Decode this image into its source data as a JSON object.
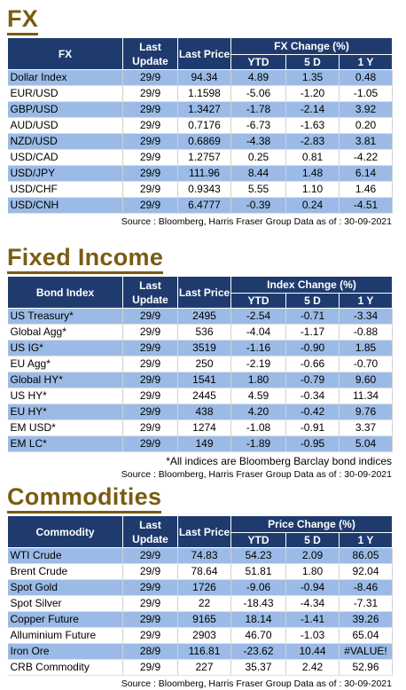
{
  "fx": {
    "title": "FX",
    "headers": {
      "name": "FX",
      "last_update": "Last Update",
      "last_price": "Last Price",
      "change_group": "FX Change (%)",
      "ytd": "YTD",
      "d5": "5 D",
      "y1": "1 Y"
    },
    "rows": [
      {
        "name": "Dollar Index",
        "update": "29/9",
        "price": "94.34",
        "ytd": "4.89",
        "d5": "1.35",
        "y1": "0.48"
      },
      {
        "name": "EUR/USD",
        "update": "29/9",
        "price": "1.1598",
        "ytd": "-5.06",
        "d5": "-1.20",
        "y1": "-1.05"
      },
      {
        "name": "GBP/USD",
        "update": "29/9",
        "price": "1.3427",
        "ytd": "-1.78",
        "d5": "-2.14",
        "y1": "3.92"
      },
      {
        "name": "AUD/USD",
        "update": "29/9",
        "price": "0.7176",
        "ytd": "-6.73",
        "d5": "-1.63",
        "y1": "0.20"
      },
      {
        "name": "NZD/USD",
        "update": "29/9",
        "price": "0.6869",
        "ytd": "-4.38",
        "d5": "-2.83",
        "y1": "3.81"
      },
      {
        "name": "USD/CAD",
        "update": "29/9",
        "price": "1.2757",
        "ytd": "0.25",
        "d5": "0.81",
        "y1": "-4.22"
      },
      {
        "name": "USD/JPY",
        "update": "29/9",
        "price": "111.96",
        "ytd": "8.44",
        "d5": "1.48",
        "y1": "6.14"
      },
      {
        "name": "USD/CHF",
        "update": "29/9",
        "price": "0.9343",
        "ytd": "5.55",
        "d5": "1.10",
        "y1": "1.46"
      },
      {
        "name": "USD/CNH",
        "update": "29/9",
        "price": "6.4777",
        "ytd": "-0.39",
        "d5": "0.24",
        "y1": "-4.51"
      }
    ],
    "source": "Source : Bloomberg, Harris Fraser Group Data as of : 30-09-2021"
  },
  "fixed_income": {
    "title": "Fixed Income",
    "headers": {
      "name": "Bond Index",
      "last_update": "Last Update",
      "last_price": "Last Price",
      "change_group": "Index Change (%)",
      "ytd": "YTD",
      "d5": "5 D",
      "y1": "1 Y"
    },
    "rows": [
      {
        "name": "US Treasury*",
        "update": "29/9",
        "price": "2495",
        "ytd": "-2.54",
        "d5": "-0.71",
        "y1": "-3.34"
      },
      {
        "name": "Global Agg*",
        "update": "29/9",
        "price": "536",
        "ytd": "-4.04",
        "d5": "-1.17",
        "y1": "-0.88"
      },
      {
        "name": "US IG*",
        "update": "29/9",
        "price": "3519",
        "ytd": "-1.16",
        "d5": "-0.90",
        "y1": "1.85"
      },
      {
        "name": "EU Agg*",
        "update": "29/9",
        "price": "250",
        "ytd": "-2.19",
        "d5": "-0.66",
        "y1": "-0.70"
      },
      {
        "name": "Global HY*",
        "update": "29/9",
        "price": "1541",
        "ytd": "1.80",
        "d5": "-0.79",
        "y1": "9.60"
      },
      {
        "name": "US HY*",
        "update": "29/9",
        "price": "2445",
        "ytd": "4.59",
        "d5": "-0.34",
        "y1": "11.34"
      },
      {
        "name": "EU HY*",
        "update": "29/9",
        "price": "438",
        "ytd": "4.20",
        "d5": "-0.42",
        "y1": "9.76"
      },
      {
        "name": "EM USD*",
        "update": "29/9",
        "price": "1274",
        "ytd": "-1.08",
        "d5": "-0.91",
        "y1": "3.37"
      },
      {
        "name": "EM LC*",
        "update": "29/9",
        "price": "149",
        "ytd": "-1.89",
        "d5": "-0.95",
        "y1": "5.04"
      }
    ],
    "note": "*All indices are Bloomberg Barclay bond indices",
    "source": "Source : Bloomberg, Harris Fraser Group Data as of : 30-09-2021"
  },
  "commodities": {
    "title": "Commodities",
    "headers": {
      "name": "Commodity",
      "last_update": "Last Update",
      "last_price": "Last Price",
      "change_group": "Price Change (%)",
      "ytd": "YTD",
      "d5": "5 D",
      "y1": "1 Y"
    },
    "rows": [
      {
        "name": "WTI Crude",
        "update": "29/9",
        "price": "74.83",
        "ytd": "54.23",
        "d5": "2.09",
        "y1": "86.05"
      },
      {
        "name": "Brent Crude",
        "update": "29/9",
        "price": "78.64",
        "ytd": "51.81",
        "d5": "1.80",
        "y1": "92.04"
      },
      {
        "name": "Spot Gold",
        "update": "29/9",
        "price": "1726",
        "ytd": "-9.06",
        "d5": "-0.94",
        "y1": "-8.46"
      },
      {
        "name": "Spot Silver",
        "update": "29/9",
        "price": "22",
        "ytd": "-18.43",
        "d5": "-4.34",
        "y1": "-7.31"
      },
      {
        "name": "Copper Future",
        "update": "29/9",
        "price": "9165",
        "ytd": "18.14",
        "d5": "-1.41",
        "y1": "39.26"
      },
      {
        "name": "Alluminium Future",
        "update": "29/9",
        "price": "2903",
        "ytd": "46.70",
        "d5": "-1.03",
        "y1": "65.04"
      },
      {
        "name": "Iron Ore",
        "update": "28/9",
        "price": "116.81",
        "ytd": "-23.62",
        "d5": "10.44",
        "y1": "#VALUE!"
      },
      {
        "name": "CRB Commodity",
        "update": "29/9",
        "price": "227",
        "ytd": "35.37",
        "d5": "2.42",
        "y1": "52.96"
      }
    ],
    "source": "Source : Bloomberg, Harris Fraser Group Data as of : 30-09-2021"
  },
  "colors": {
    "header_bg": "#1f3b6e",
    "alt_row": "#9bbbe6",
    "title": "#7a5c12"
  }
}
